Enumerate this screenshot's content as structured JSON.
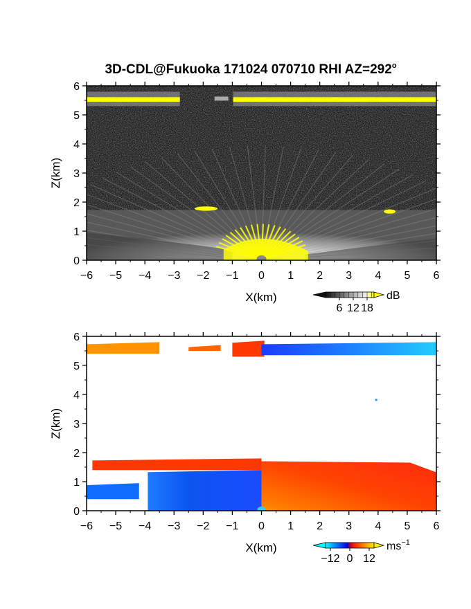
{
  "figure_title": "3D-CDL@Fukuoka 171024 070710 RHI AZ=292",
  "title_superscript": "o",
  "colors": {
    "background": "#ffffff",
    "frame": "#000000",
    "dark_field": "#222222",
    "yellow": "#ffff00",
    "cyan": "#33ccee"
  },
  "chart_data": [
    {
      "type": "heatmap",
      "name": "backscatter-intensity-rhi",
      "xlabel": "X(km)",
      "ylabel": "Z(km)",
      "xlim": [
        -6,
        6
      ],
      "ylim": [
        0,
        6
      ],
      "xticks": [
        -6,
        -5,
        -4,
        -3,
        -2,
        -1,
        0,
        1,
        2,
        3,
        4,
        5,
        6
      ],
      "yticks": [
        0,
        1,
        2,
        3,
        4,
        5,
        6
      ],
      "colorbar": {
        "unit": "dB",
        "tick_labels": [
          "6",
          "12",
          "18"
        ],
        "ticks": [
          6,
          12,
          18
        ],
        "range": [
          0,
          21
        ],
        "colormap": "greyscale-to-yellow"
      },
      "regions": [
        {
          "kind": "noise",
          "x": [
            -6,
            6
          ],
          "z": [
            0,
            6
          ],
          "value": 2
        },
        {
          "kind": "boundary-layer",
          "x": [
            -6,
            6
          ],
          "z": [
            0,
            1.8
          ],
          "value": 10
        },
        {
          "kind": "strong-near-radar",
          "x": [
            -1.3,
            1.6
          ],
          "z": [
            0,
            0.9
          ],
          "value": 20
        },
        {
          "kind": "cloud-base-layer",
          "x": [
            -6,
            6
          ],
          "z": [
            5.35,
            5.75
          ],
          "value": 19
        },
        {
          "kind": "layer-top-echo",
          "x": [
            -2.3,
            -1.5
          ],
          "z": [
            1.7,
            1.85
          ],
          "value": 19
        },
        {
          "kind": "layer-top-echo",
          "x": [
            4.2,
            4.6
          ],
          "z": [
            1.6,
            1.75
          ],
          "value": 19
        }
      ]
    },
    {
      "type": "heatmap",
      "name": "radial-velocity-rhi",
      "xlabel": "X(km)",
      "ylabel": "Z(km)",
      "xlim": [
        -6,
        6
      ],
      "ylim": [
        0,
        6
      ],
      "xticks": [
        -6,
        -5,
        -4,
        -3,
        -2,
        -1,
        0,
        1,
        2,
        3,
        4,
        5,
        6
      ],
      "yticks": [
        0,
        1,
        2,
        3,
        4,
        5,
        6
      ],
      "colorbar": {
        "unit": "ms",
        "unit_exponent": "-1",
        "tick_labels": [
          "-12",
          "0",
          "12"
        ],
        "ticks": [
          -12,
          0,
          12
        ],
        "range": [
          -15,
          15
        ],
        "colormap": "cyan-blue-red-yellow"
      },
      "regions": [
        {
          "kind": "upper-layer",
          "x": [
            -6,
            -3.5
          ],
          "z": [
            5.4,
            5.8
          ],
          "value": 9
        },
        {
          "kind": "upper-layer",
          "x": [
            -2.5,
            -1.4
          ],
          "z": [
            5.5,
            5.7
          ],
          "value": 7
        },
        {
          "kind": "upper-layer",
          "x": [
            -1.0,
            0.1
          ],
          "z": [
            5.3,
            5.85
          ],
          "value": 4
        },
        {
          "kind": "upper-layer",
          "x": [
            0.0,
            6
          ],
          "z": [
            5.35,
            5.8
          ],
          "value": -8
        },
        {
          "kind": "lower-layer-west",
          "x": [
            -6,
            -4.2
          ],
          "z": [
            0.4,
            0.95
          ],
          "value": -9
        },
        {
          "kind": "lower-layer-west",
          "x": [
            -3.9,
            0.0
          ],
          "z": [
            0,
            1.4
          ],
          "value": -8
        },
        {
          "kind": "lower-layer-top-west",
          "x": [
            -5.8,
            0.0
          ],
          "z": [
            1.4,
            1.8
          ],
          "value": 4
        },
        {
          "kind": "lower-layer-east",
          "x": [
            0.0,
            6
          ],
          "z": [
            0,
            1.75
          ],
          "value": 6
        }
      ]
    }
  ]
}
